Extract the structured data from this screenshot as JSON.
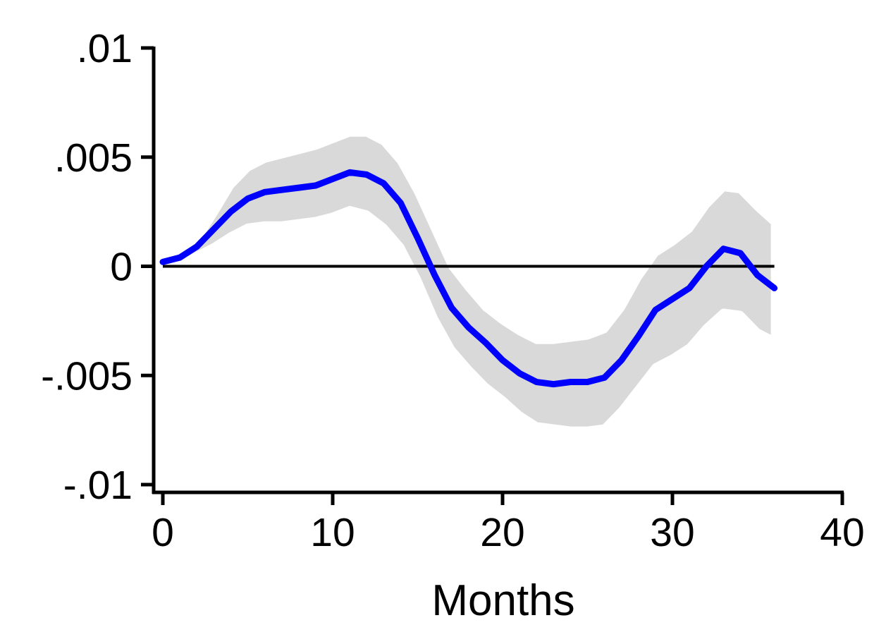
{
  "chart_data": {
    "type": "line",
    "title": "",
    "xlabel": "Months",
    "ylabel": "",
    "xlim": [
      0,
      40
    ],
    "ylim": [
      -0.01,
      0.01
    ],
    "x_ticks": [
      0,
      10,
      20,
      30,
      40
    ],
    "x_tick_labels": [
      "0",
      "10",
      "20",
      "30",
      "40"
    ],
    "y_ticks": [
      0.01,
      0.005,
      0,
      -0.005,
      -0.01
    ],
    "y_tick_labels": [
      ".01",
      ".005",
      "0",
      "-.005",
      "-.01"
    ],
    "grid": false,
    "legend": "none",
    "reference_line": {
      "y": 0,
      "x_from": 0,
      "x_to": 36
    },
    "series": [
      {
        "type": "line",
        "color": "#0000ff",
        "x": [
          0,
          1,
          2,
          3,
          4,
          5,
          6,
          7,
          8,
          9,
          10,
          11,
          12,
          13,
          14,
          15,
          16,
          17,
          18,
          19,
          20,
          21,
          22,
          23,
          24,
          25,
          26,
          27,
          28,
          29,
          30,
          31,
          32,
          33,
          34,
          35,
          36
        ],
        "values": [
          0.0002,
          0.0004,
          0.0009,
          0.0017,
          0.0025,
          0.0031,
          0.0034,
          0.0035,
          0.0036,
          0.0037,
          0.004,
          0.0043,
          0.0042,
          0.0038,
          0.0029,
          0.0013,
          -0.0004,
          -0.0019,
          -0.0028,
          -0.0035,
          -0.0043,
          -0.0049,
          -0.0053,
          -0.0054,
          -0.0053,
          -0.0053,
          -0.0051,
          -0.0043,
          -0.0032,
          -0.002,
          -0.0015,
          -0.001,
          0.0,
          0.0008,
          0.0006,
          -0.0004,
          -0.001
        ]
      },
      {
        "type": "band",
        "color": "#d9d9d9",
        "x": [
          0,
          1,
          2,
          3,
          4,
          5,
          6,
          7,
          8,
          9,
          10,
          11,
          12,
          13,
          14,
          15,
          16,
          17,
          18,
          19,
          20,
          21,
          22,
          23,
          24,
          25,
          26,
          27,
          28,
          29,
          30,
          31,
          32,
          33,
          34,
          35,
          36
        ],
        "lower": [
          0.0,
          0.0001,
          0.0005,
          0.0009,
          0.0014,
          0.0018,
          0.0019,
          0.0019,
          0.002,
          0.0021,
          0.0023,
          0.0026,
          0.0024,
          0.0018,
          0.0009,
          -0.0006,
          -0.0024,
          -0.0038,
          -0.0047,
          -0.0055,
          -0.0061,
          -0.0068,
          -0.0073,
          -0.0074,
          -0.0075,
          -0.0075,
          -0.0074,
          -0.0066,
          -0.0056,
          -0.0046,
          -0.0042,
          -0.0037,
          -0.0028,
          -0.0021,
          -0.0022,
          -0.003,
          -0.0034
        ],
        "upper": [
          0.0003,
          0.0006,
          0.0012,
          0.0024,
          0.0037,
          0.0045,
          0.0049,
          0.0051,
          0.0053,
          0.0055,
          0.0058,
          0.0061,
          0.0061,
          0.0057,
          0.0048,
          0.0034,
          0.0017,
          0.0,
          -0.001,
          -0.0019,
          -0.0025,
          -0.003,
          -0.0034,
          -0.0034,
          -0.0033,
          -0.0032,
          -0.0029,
          -0.0019,
          -0.0005,
          0.0006,
          0.0011,
          0.0017,
          0.0028,
          0.0036,
          0.0035,
          0.0027,
          0.002
        ]
      }
    ]
  }
}
